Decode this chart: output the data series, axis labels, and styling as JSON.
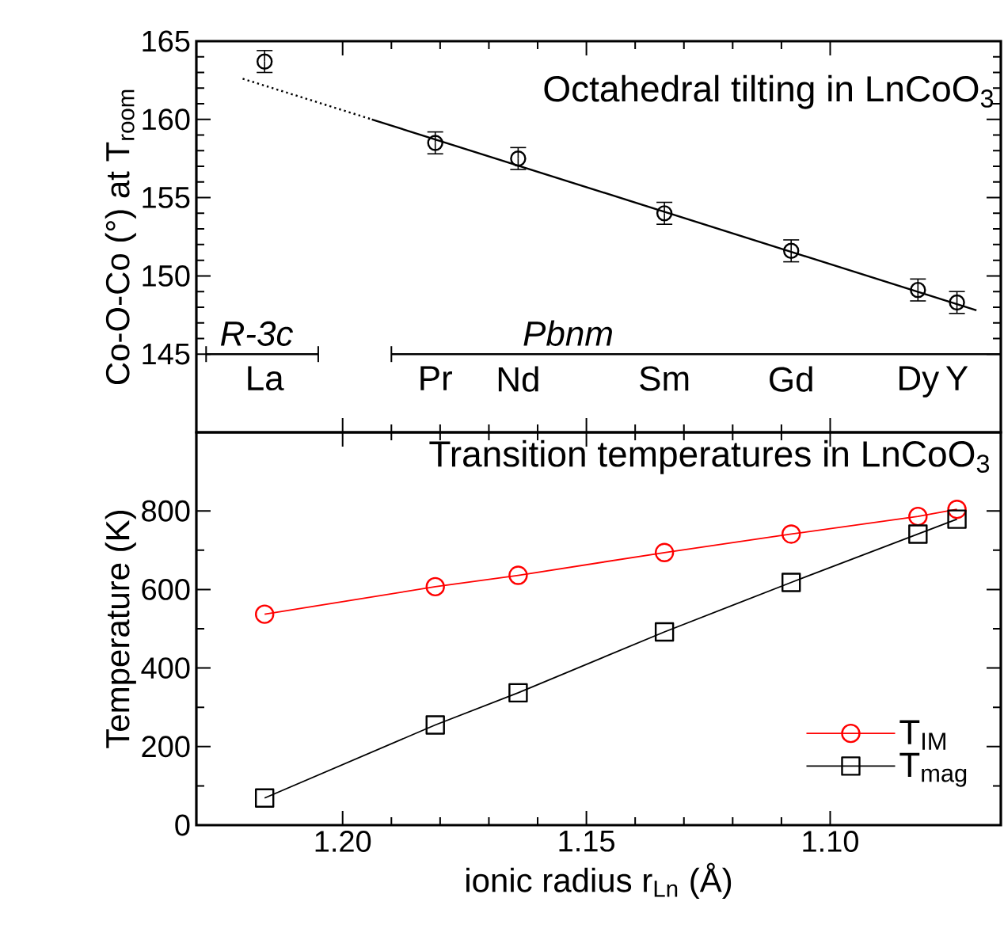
{
  "chart_data": [
    {
      "type": "scatter",
      "title": "Octahedral tilting in LnCoO$_{3}$",
      "ylabel": "Co-O-Co (°) at T$_{room}$",
      "x": [
        1.216,
        1.181,
        1.164,
        1.134,
        1.108,
        1.082,
        1.074
      ],
      "xlim": [
        1.23,
        1.065
      ],
      "xticks": [
        1.2,
        1.15,
        1.1
      ],
      "ylim": [
        140,
        165
      ],
      "yticks": [
        145,
        150,
        155,
        160,
        165
      ],
      "tick_labels": "y",
      "marker": "circle",
      "series": [
        {
          "color": "#000000",
          "values": [
            163.7,
            158.5,
            157.5,
            154.0,
            151.6,
            149.1,
            148.3
          ],
          "errors": [
            0.7,
            0.7,
            0.7,
            0.7,
            0.7,
            0.7,
            0.7
          ]
        },
        {
          "type": "line",
          "x": [
            1.194,
            1.07
          ],
          "values": [
            160.0,
            147.8
          ],
          "color": "#000000",
          "marker": "none",
          "line_style": "solid"
        },
        {
          "type": "line",
          "x": [
            1.2205,
            1.194
          ],
          "values": [
            162.6,
            160.0
          ],
          "color": "#000000",
          "marker": "none",
          "line_style": "dotted"
        },
        {
          "type": "line",
          "x": [
            1.228,
            1.205
          ],
          "values": [
            145,
            145
          ],
          "color": "#000000",
          "marker": "none",
          "line_style": "solid"
        },
        {
          "type": "line",
          "x": [
            1.19,
            1.065
          ],
          "values": [
            145,
            145
          ],
          "color": "#000000",
          "marker": "none",
          "line_style": "solid"
        }
      ],
      "annotations": [
        "*R-3c*",
        "*Pbnm*",
        "La",
        "Pr",
        "Nd",
        "Sm",
        "Gd",
        "Dy",
        "Y"
      ]
    },
    {
      "type": "line",
      "title": "Transition temperatures in LnCoO$_{3}$",
      "xlabel": "ionic radius r$_{Ln}$ (Å)",
      "ylabel": "Temperature (K)",
      "x": [
        1.216,
        1.181,
        1.164,
        1.134,
        1.108,
        1.082,
        1.074
      ],
      "xlim": [
        1.23,
        1.065
      ],
      "xticks": [
        {
          "value": 1.2,
          "label": "1.20"
        },
        {
          "value": 1.15,
          "label": "1.15"
        },
        {
          "value": 1.1,
          "label": "1.10"
        }
      ],
      "ylim": [
        0,
        1000
      ],
      "yticks": [
        0,
        200,
        400,
        600,
        800
      ],
      "legend": "bottom right",
      "series": [
        {
          "name": "T$_{IM}$",
          "color": "#ff0000",
          "marker": "circle",
          "values": [
            537,
            607,
            636,
            694,
            741,
            786,
            804
          ]
        },
        {
          "name": "T$_{mag}$",
          "color": "#000000",
          "marker": "square",
          "values": [
            69,
            255,
            337,
            492,
            618,
            741,
            779
          ]
        }
      ]
    }
  ]
}
